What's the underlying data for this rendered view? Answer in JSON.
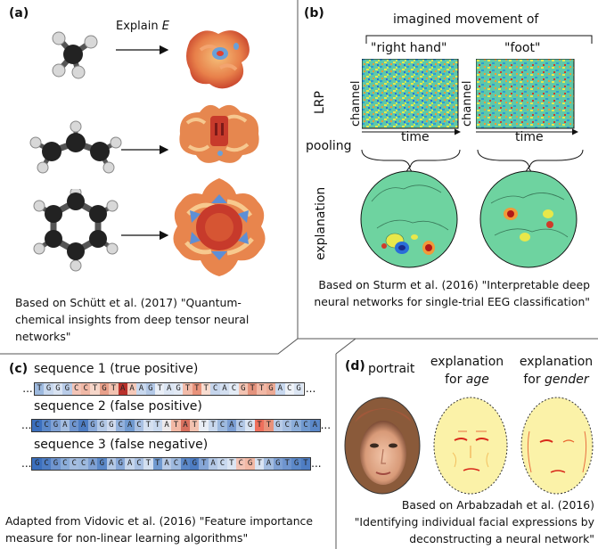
{
  "panel_a": {
    "label": "(a)",
    "arrow_label_prefix": "Explain ",
    "arrow_label_var": "E",
    "caption": "Based on Schütt et al. (2017) \"Quantum-chemical insights from deep tensor neural networks\""
  },
  "panel_b": {
    "label": "(b)",
    "header": "imagined movement of",
    "col1": "\"right hand\"",
    "col2": "\"foot\"",
    "lrp": "LRP",
    "channel": "channel",
    "time": "time",
    "pooling": "pooling",
    "explanation": "explanation",
    "caption": "Based on Sturm et al. (2016) \"Interpretable deep neural networks for single-trial EEG classification\""
  },
  "panel_c": {
    "label": "(c)",
    "dots": "...",
    "sequences": [
      {
        "title": "sequence 1 (true positive)",
        "letters": "TGGGCCTGTAAAGTAGTTTCACGTTGACG",
        "colors": [
          "#9db9de",
          "#c8d8ee",
          "#d9e3f2",
          "#b9cce8",
          "#f3c4b6",
          "#f0b8a6",
          "#f6d6c9",
          "#e8a08a",
          "#f2c2b0",
          "#b8302a",
          "#f5c9b9",
          "#c8d8ee",
          "#b3c8e6",
          "#e9eef6",
          "#dbe5f3",
          "#e2e9f4",
          "#f2bba9",
          "#e8927b",
          "#f8dcd0",
          "#c5d5ec",
          "#d3dff0",
          "#e3ebf5",
          "#f3c3b2",
          "#e4937d",
          "#f2b8a5",
          "#ecaa95",
          "#c8d8ee",
          "#eef2f8",
          "#dbe5f3"
        ]
      },
      {
        "title": "sequence 2 (false positive)",
        "letters": "CCGACAGGGCACTTATATTTCACGTTGCACA",
        "colors": [
          "#3b6fbd",
          "#5b88c8",
          "#7fa1d4",
          "#a4bde0",
          "#6f95cf",
          "#4e7dc3",
          "#88a8d8",
          "#b3c8e6",
          "#cfdaee",
          "#93b1dc",
          "#7099cf",
          "#a9c0e2",
          "#d5e0f0",
          "#c8d8ee",
          "#ede9ea",
          "#f2b8a5",
          "#d8705e",
          "#f2c2b0",
          "#e9eef6",
          "#c8d8ee",
          "#9db9de",
          "#7b9ed3",
          "#b3c8e6",
          "#d9e3f2",
          "#ee6f5c",
          "#e8927b",
          "#b8cbe7",
          "#a4bde0",
          "#8badd9",
          "#7099cf",
          "#5b88c8"
        ]
      },
      {
        "title": "sequence 3 (false negative)",
        "letters": "GCGCCCAGAGACTTACAGTACTCGTAGTGT",
        "colors": [
          "#3b6fbd",
          "#4e7dc3",
          "#6f95cf",
          "#8badd9",
          "#a4bde0",
          "#9db9de",
          "#7fa1d4",
          "#5b88c8",
          "#b3c8e6",
          "#88a8d8",
          "#c5d5ec",
          "#a9c0e2",
          "#d3dff0",
          "#7099cf",
          "#b8cbe7",
          "#9db9de",
          "#5b88c8",
          "#4e7dc3",
          "#86a6d7",
          "#b3c8e6",
          "#c8d8ee",
          "#dbe5f3",
          "#f3c4b6",
          "#f2b8a5",
          "#d9e3f2",
          "#a4bde0",
          "#7fa1d4",
          "#6f95cf",
          "#5b88c8",
          "#4e7dc3"
        ]
      }
    ],
    "caption": "Adapted from Vidovic et al. (2016) \"Feature importance measure for non-linear learning algorithms\""
  },
  "panel_d": {
    "label": "(d)",
    "portrait": "portrait",
    "exp1_line1": "explanation",
    "exp1_for": "for ",
    "exp1_var": "age",
    "exp2_line1": "explanation",
    "exp2_for": "for ",
    "exp2_var": "gender",
    "caption": "Based on Arbabzadah et al. (2016) \"Identifying individual facial expressions by deconstructing a neural network\""
  }
}
